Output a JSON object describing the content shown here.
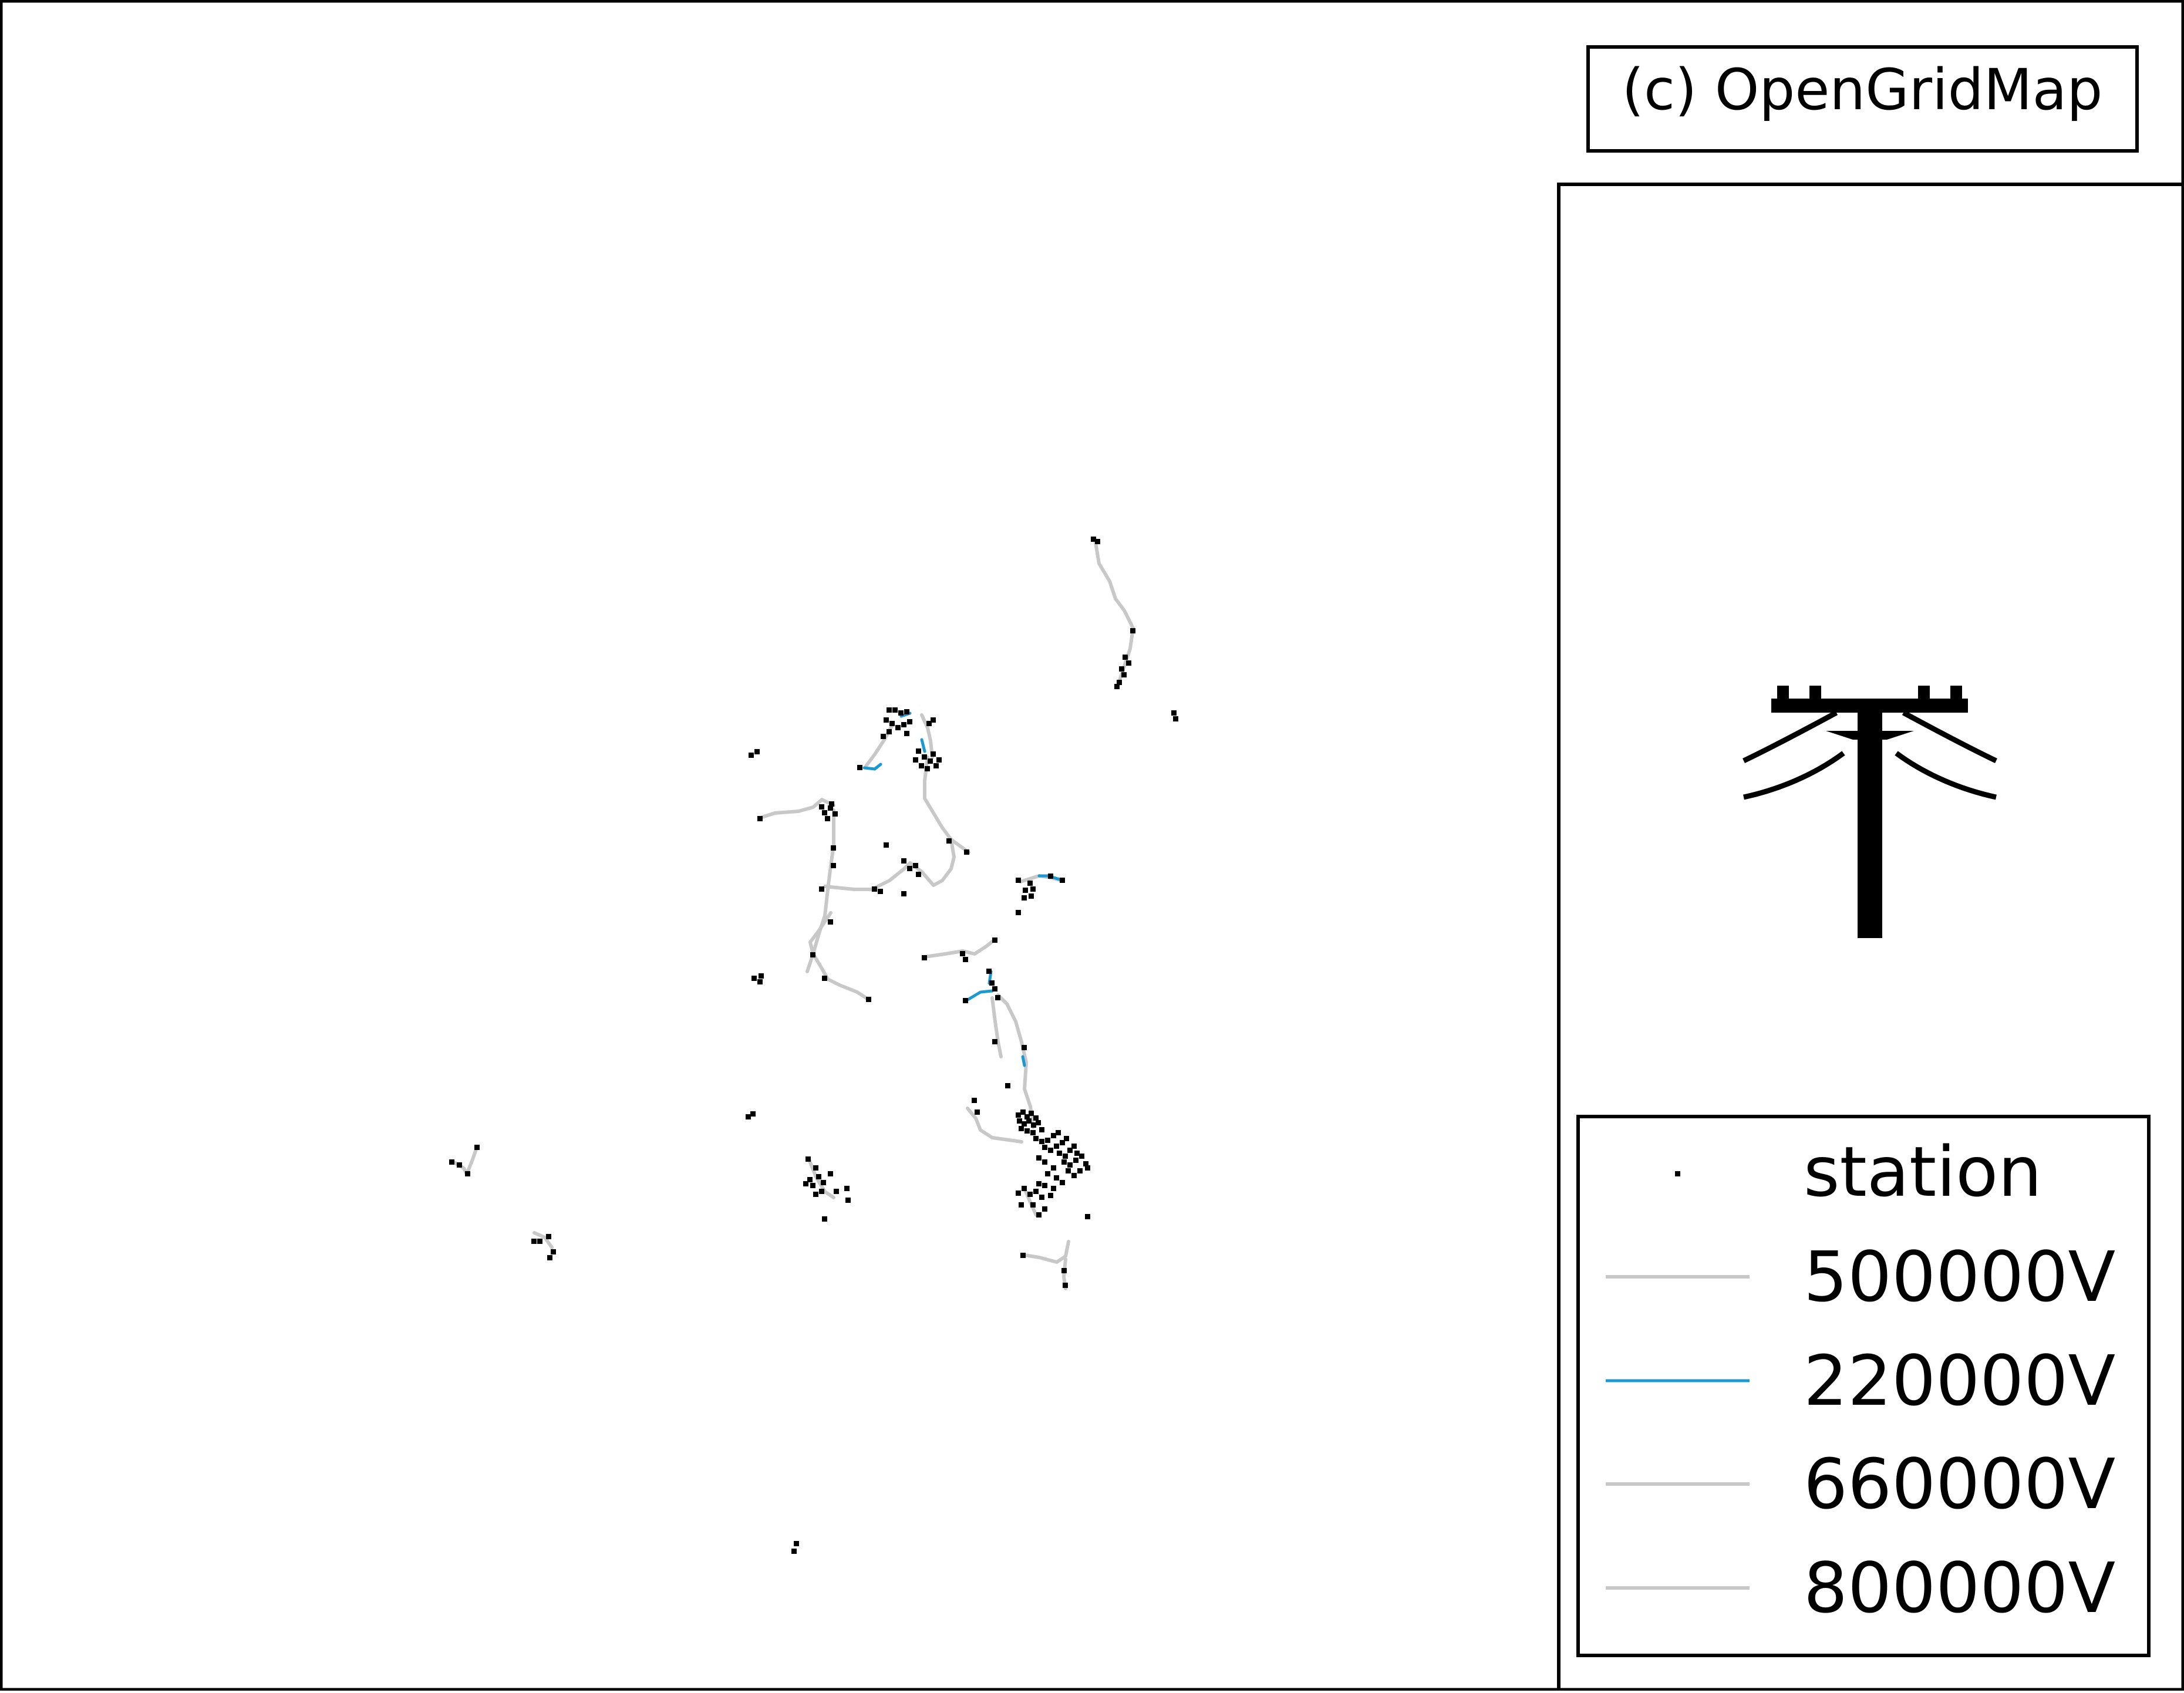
{
  "attribution": "(c) OpenGridMap",
  "colors": {
    "background": "#ffffff",
    "frame": "#000000",
    "station": "#000000",
    "line_500kv": "#c8c8c8",
    "line_220kv": "#1a9ad0",
    "line_660kv": "#c8c8c8",
    "line_800kv": "#c8c8c8"
  },
  "icon": "power-pole-icon",
  "legend": {
    "station": "station",
    "v500": "500000V",
    "v220": "220000V",
    "v660": "660000V",
    "v800": "800000V"
  }
}
